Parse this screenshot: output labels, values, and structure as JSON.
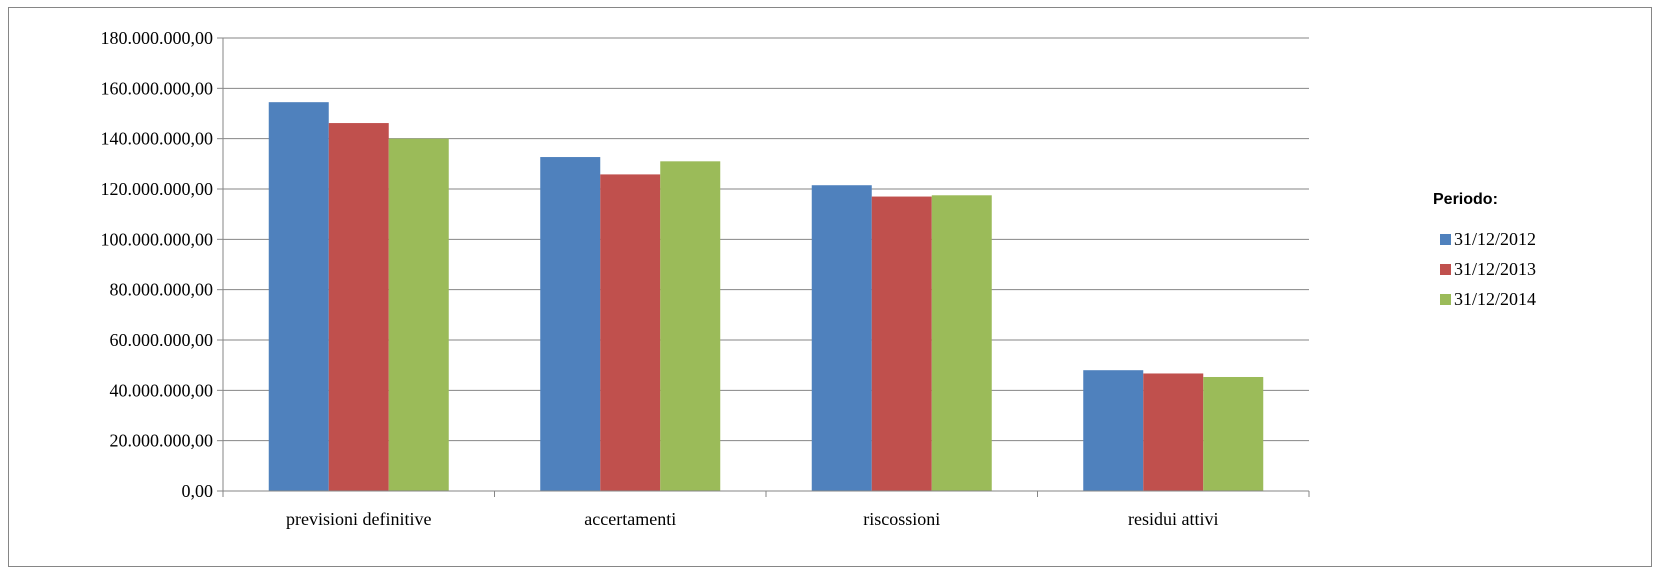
{
  "chart_data": {
    "type": "bar",
    "categories": [
      "previsioni definitive",
      "accertamenti",
      "riscossioni",
      "residui attivi"
    ],
    "series": [
      {
        "name": "31/12/2012",
        "color": "#4F81BD",
        "values": [
          154500000,
          132700000,
          121500000,
          48000000
        ]
      },
      {
        "name": "31/12/2013",
        "color": "#C0504D",
        "values": [
          146200000,
          125800000,
          117000000,
          46700000
        ]
      },
      {
        "name": "31/12/2014",
        "color": "#9BBB59",
        "values": [
          140000000,
          131000000,
          117500000,
          45300000
        ]
      }
    ],
    "ylim": [
      0,
      180000000
    ],
    "yticks": [
      {
        "value": 0,
        "label": "0,00"
      },
      {
        "value": 20000000,
        "label": "20.000.000,00"
      },
      {
        "value": 40000000,
        "label": "40.000.000,00"
      },
      {
        "value": 60000000,
        "label": "60.000.000,00"
      },
      {
        "value": 80000000,
        "label": "80.000.000,00"
      },
      {
        "value": 100000000,
        "label": "100.000.000,00"
      },
      {
        "value": 120000000,
        "label": "120.000.000,00"
      },
      {
        "value": 140000000,
        "label": "140.000.000,00"
      },
      {
        "value": 160000000,
        "label": "160.000.000,00"
      },
      {
        "value": 180000000,
        "label": "180.000.000,00"
      }
    ],
    "grid": true,
    "legend": {
      "title": "Periodo:",
      "placement": "right"
    }
  }
}
